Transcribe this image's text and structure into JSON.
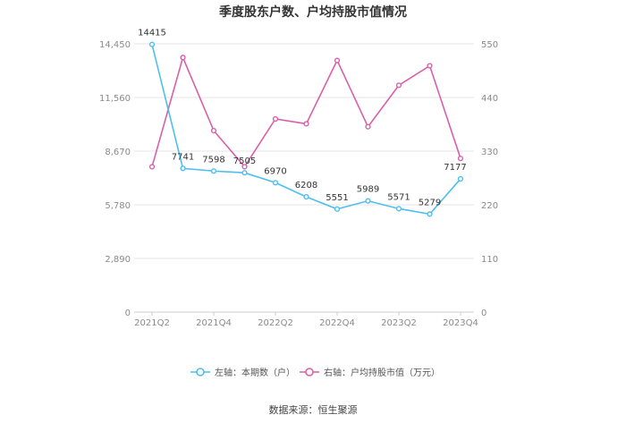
{
  "chart_data": {
    "type": "line",
    "title": "季度股东户数、户均持股市值情况",
    "categories": [
      "2021Q2",
      "2021Q3",
      "2021Q4",
      "2022Q1",
      "2022Q2",
      "2022Q3",
      "2022Q4",
      "2023Q1",
      "2023Q2",
      "2023Q3",
      "2023Q4"
    ],
    "x_tick_labels": [
      "2021Q2",
      "2021Q4",
      "2022Q2",
      "2022Q4",
      "2023Q2",
      "2023Q4"
    ],
    "left_axis": {
      "ylim": [
        0,
        14450
      ],
      "ticks": [
        "0",
        "2,890",
        "5,780",
        "8,670",
        "11,560",
        "14,450"
      ]
    },
    "right_axis": {
      "ylim": [
        0,
        550
      ],
      "ticks": [
        "0",
        "110",
        "220",
        "330",
        "440",
        "550"
      ]
    },
    "series": [
      {
        "name": "左轴：本期数（户）",
        "axis": "left",
        "color": "#4dbef0",
        "values": [
          14415,
          7741,
          7598,
          7505,
          6970,
          6208,
          5551,
          5989,
          5571,
          5279,
          7177
        ],
        "labels": [
          "14415",
          "7741",
          "7598",
          "7505",
          "6970",
          "6208",
          "5551",
          "5989",
          "5571",
          "5279",
          "7177"
        ]
      },
      {
        "name": "右轴：户均持股市值（万元）",
        "axis": "right",
        "color": "#d95fa8",
        "values": [
          298,
          522,
          372,
          298,
          396,
          386,
          516,
          380,
          465,
          505,
          315
        ]
      }
    ],
    "grid": true,
    "legend_position": "bottom"
  },
  "footer": {
    "source": "数据来源：恒生聚源"
  }
}
